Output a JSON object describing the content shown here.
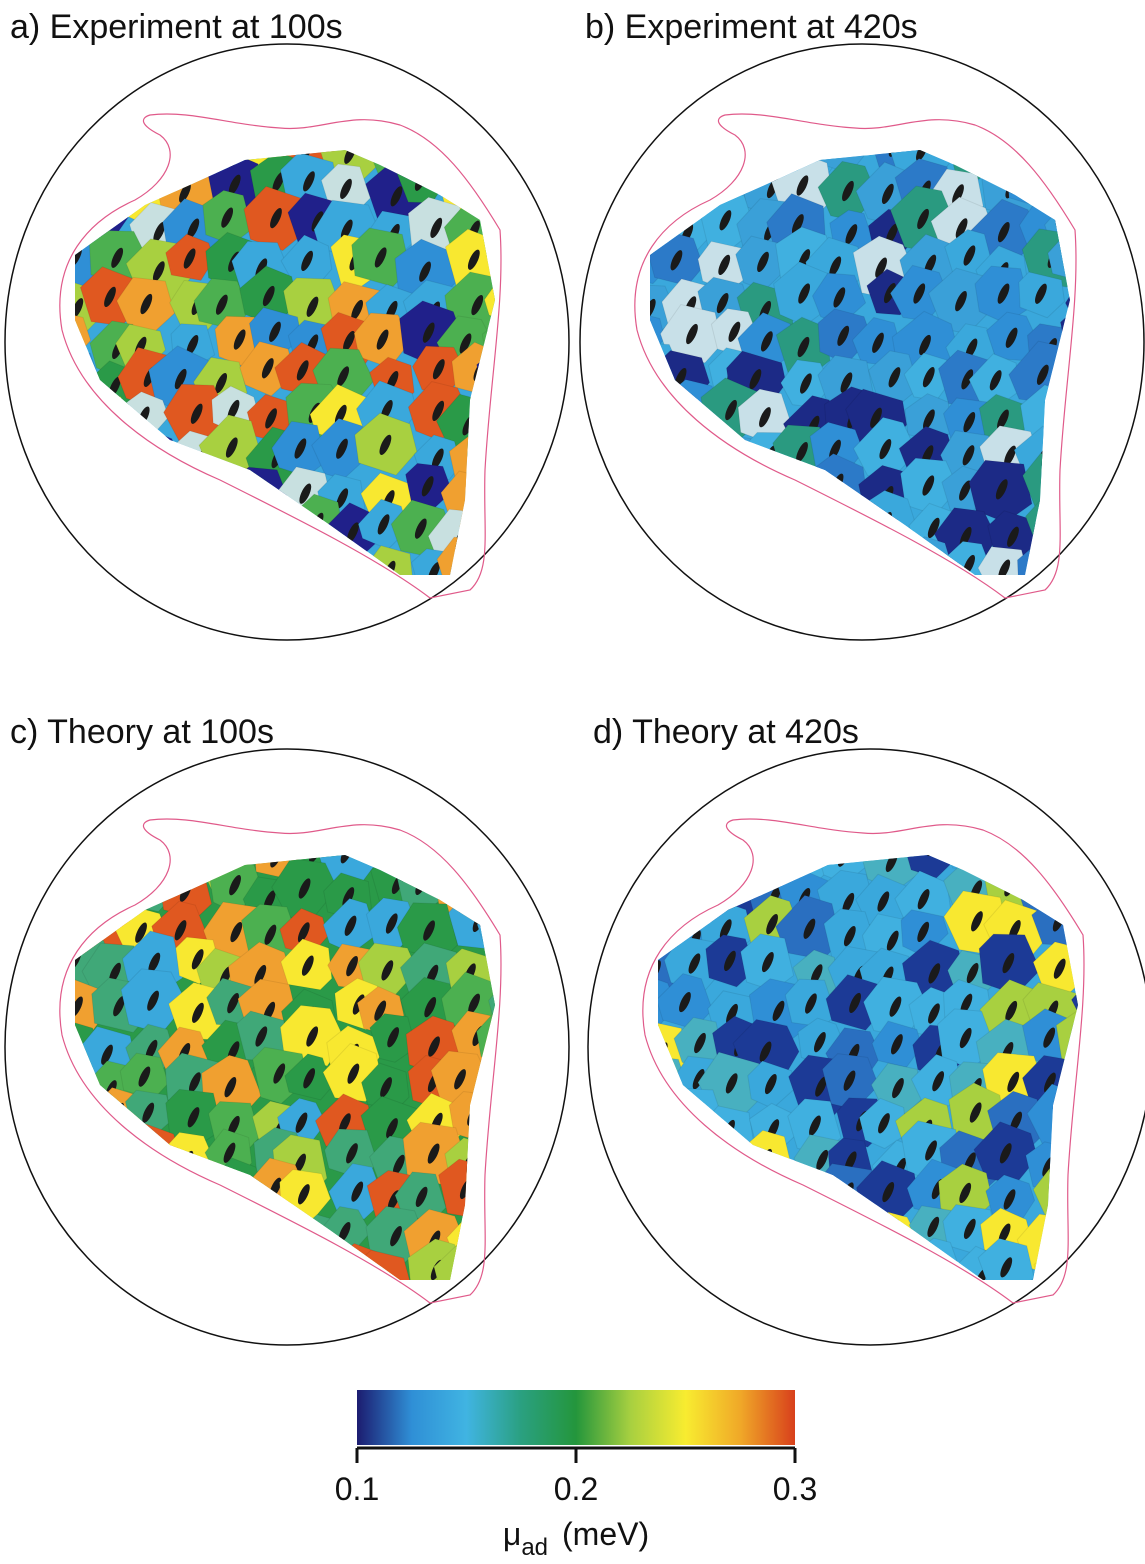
{
  "panels": [
    {
      "title": "a) Experiment at 100s"
    },
    {
      "title": "b) Experiment at 420s"
    },
    {
      "title": "c) Theory at 100s"
    },
    {
      "title": "d) Theory at 420s"
    }
  ],
  "colorbar": {
    "lim": [
      0.1,
      0.3
    ],
    "ticks": [
      0.1,
      0.2,
      0.3
    ],
    "colors": [
      "#1c1c70",
      "#2f8fd6",
      "#40b4e2",
      "#2aa080",
      "#24963c",
      "#a8d040",
      "#f8ec30",
      "#f0a828",
      "#d8401c"
    ],
    "label": "μ",
    "label_subscript": "ad",
    "label_unit": "(meV)"
  }
}
